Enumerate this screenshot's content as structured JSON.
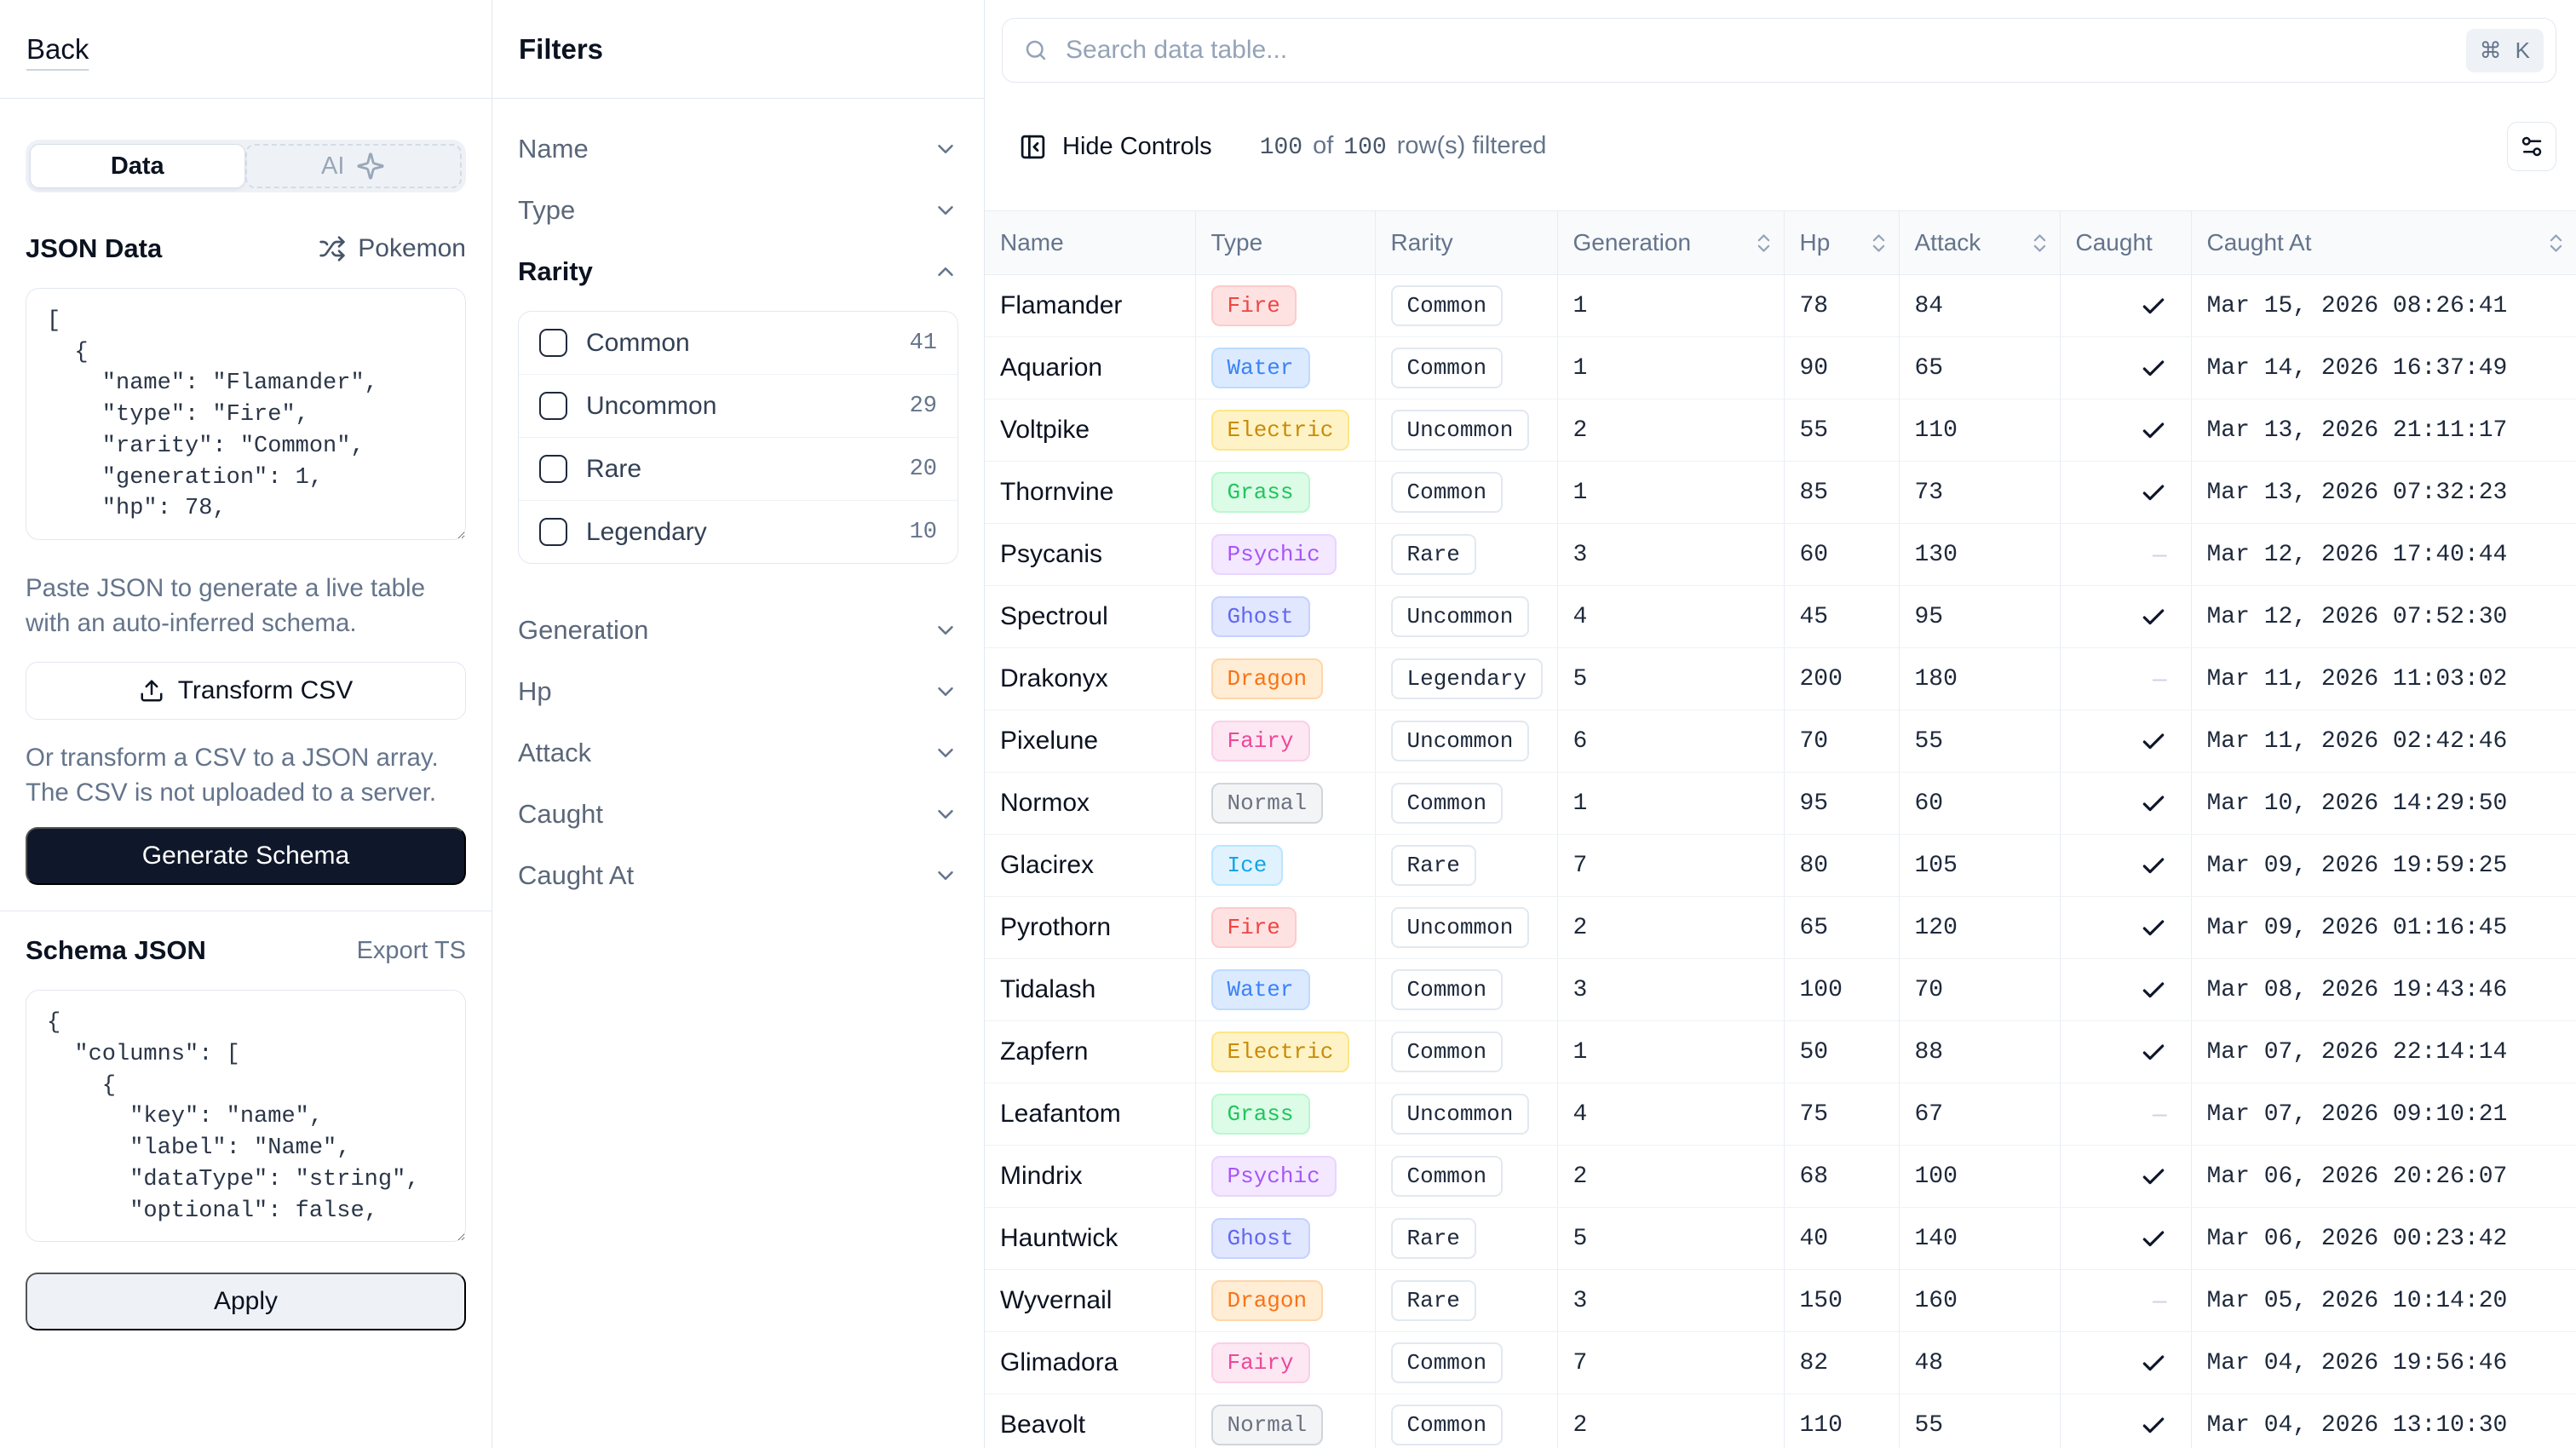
{
  "colors": {
    "accent_dark": "#0f172a",
    "border": "#e2e8f0",
    "header_bg": "#f8fafc",
    "muted": "#64748b"
  },
  "sidebar": {
    "back_label": "Back",
    "tabs": {
      "data": "Data",
      "ai": "AI"
    },
    "json_data_label": "JSON Data",
    "randomize_label": "Pokemon",
    "json_value": "[\n  {\n    \"name\": \"Flamander\",\n    \"type\": \"Fire\",\n    \"rarity\": \"Common\",\n    \"generation\": 1,\n    \"hp\": 78,",
    "json_help": "Paste JSON to generate a live table with an auto-inferred schema.",
    "transform_csv_label": "Transform CSV",
    "csv_help": "Or transform a CSV to a JSON array. The CSV is not uploaded to a server.",
    "generate_schema_label": "Generate Schema",
    "schema_json_label": "Schema JSON",
    "export_ts_label": "Export TS",
    "schema_value": "{\n  \"columns\": [\n    {\n      \"key\": \"name\",\n      \"label\": \"Name\",\n      \"dataType\": \"string\",\n      \"optional\": false,",
    "apply_label": "Apply"
  },
  "filters": {
    "title": "Filters",
    "sections": [
      {
        "label": "Name",
        "expanded": false
      },
      {
        "label": "Type",
        "expanded": false
      },
      {
        "label": "Rarity",
        "expanded": true,
        "options": [
          {
            "label": "Common",
            "count": "41"
          },
          {
            "label": "Uncommon",
            "count": "29"
          },
          {
            "label": "Rare",
            "count": "20"
          },
          {
            "label": "Legendary",
            "count": "10"
          }
        ]
      },
      {
        "label": "Generation",
        "expanded": false
      },
      {
        "label": "Hp",
        "expanded": false
      },
      {
        "label": "Attack",
        "expanded": false
      },
      {
        "label": "Caught",
        "expanded": false
      },
      {
        "label": "Caught At",
        "expanded": false
      }
    ]
  },
  "toolbar": {
    "search_placeholder": "Search data table...",
    "shortcut_cmd": "⌘",
    "shortcut_key": "K",
    "hide_controls_label": "Hide Controls",
    "status": {
      "count": "100",
      "of_label": "of",
      "total": "100",
      "label": "row(s) filtered"
    }
  },
  "type_colors": {
    "Fire": {
      "text": "#ef4444",
      "bg": "#fee2e2",
      "border": "#fecaca"
    },
    "Water": {
      "text": "#3b82f6",
      "bg": "#dbeafe",
      "border": "#bfdbfe"
    },
    "Electric": {
      "text": "#ca8a04",
      "bg": "#fef3c7",
      "border": "#fde68a"
    },
    "Grass": {
      "text": "#22c55e",
      "bg": "#dcfce7",
      "border": "#bbf7d0"
    },
    "Psychic": {
      "text": "#a855f7",
      "bg": "#f3e8ff",
      "border": "#e9d5ff"
    },
    "Ghost": {
      "text": "#6366f1",
      "bg": "#e0e7ff",
      "border": "#c7d2fe"
    },
    "Dragon": {
      "text": "#f97316",
      "bg": "#ffedd5",
      "border": "#fed7aa"
    },
    "Fairy": {
      "text": "#ec4899",
      "bg": "#fce7f3",
      "border": "#fbcfe8"
    },
    "Normal": {
      "text": "#6b7280",
      "bg": "#f3f4f6",
      "border": "#d1d5db"
    },
    "Ice": {
      "text": "#0ea5e9",
      "bg": "#e0f2fe",
      "border": "#bae6fd"
    }
  },
  "table": {
    "columns": [
      {
        "key": "name",
        "label": "Name",
        "sortable": false
      },
      {
        "key": "type",
        "label": "Type",
        "sortable": false
      },
      {
        "key": "rarity",
        "label": "Rarity",
        "sortable": false
      },
      {
        "key": "generation",
        "label": "Generation",
        "sortable": true
      },
      {
        "key": "hp",
        "label": "Hp",
        "sortable": true
      },
      {
        "key": "attack",
        "label": "Attack",
        "sortable": true
      },
      {
        "key": "caught",
        "label": "Caught",
        "sortable": false
      },
      {
        "key": "caught_at",
        "label": "Caught At",
        "sortable": true
      }
    ],
    "rows": [
      {
        "name": "Flamander",
        "type": "Fire",
        "rarity": "Common",
        "generation": "1",
        "hp": "78",
        "attack": "84",
        "caught": true,
        "caught_at": "Mar 15, 2026 08:26:41"
      },
      {
        "name": "Aquarion",
        "type": "Water",
        "rarity": "Common",
        "generation": "1",
        "hp": "90",
        "attack": "65",
        "caught": true,
        "caught_at": "Mar 14, 2026 16:37:49"
      },
      {
        "name": "Voltpike",
        "type": "Electric",
        "rarity": "Uncommon",
        "generation": "2",
        "hp": "55",
        "attack": "110",
        "caught": true,
        "caught_at": "Mar 13, 2026 21:11:17"
      },
      {
        "name": "Thornvine",
        "type": "Grass",
        "rarity": "Common",
        "generation": "1",
        "hp": "85",
        "attack": "73",
        "caught": true,
        "caught_at": "Mar 13, 2026 07:32:23"
      },
      {
        "name": "Psycanis",
        "type": "Psychic",
        "rarity": "Rare",
        "generation": "3",
        "hp": "60",
        "attack": "130",
        "caught": false,
        "caught_at": "Mar 12, 2026 17:40:44"
      },
      {
        "name": "Spectroul",
        "type": "Ghost",
        "rarity": "Uncommon",
        "generation": "4",
        "hp": "45",
        "attack": "95",
        "caught": true,
        "caught_at": "Mar 12, 2026 07:52:30"
      },
      {
        "name": "Drakonyx",
        "type": "Dragon",
        "rarity": "Legendary",
        "generation": "5",
        "hp": "200",
        "attack": "180",
        "caught": false,
        "caught_at": "Mar 11, 2026 11:03:02"
      },
      {
        "name": "Pixelune",
        "type": "Fairy",
        "rarity": "Uncommon",
        "generation": "6",
        "hp": "70",
        "attack": "55",
        "caught": true,
        "caught_at": "Mar 11, 2026 02:42:46"
      },
      {
        "name": "Normox",
        "type": "Normal",
        "rarity": "Common",
        "generation": "1",
        "hp": "95",
        "attack": "60",
        "caught": true,
        "caught_at": "Mar 10, 2026 14:29:50"
      },
      {
        "name": "Glacirex",
        "type": "Ice",
        "rarity": "Rare",
        "generation": "7",
        "hp": "80",
        "attack": "105",
        "caught": true,
        "caught_at": "Mar 09, 2026 19:59:25"
      },
      {
        "name": "Pyrothorn",
        "type": "Fire",
        "rarity": "Uncommon",
        "generation": "2",
        "hp": "65",
        "attack": "120",
        "caught": true,
        "caught_at": "Mar 09, 2026 01:16:45"
      },
      {
        "name": "Tidalash",
        "type": "Water",
        "rarity": "Common",
        "generation": "3",
        "hp": "100",
        "attack": "70",
        "caught": true,
        "caught_at": "Mar 08, 2026 19:43:46"
      },
      {
        "name": "Zapfern",
        "type": "Electric",
        "rarity": "Common",
        "generation": "1",
        "hp": "50",
        "attack": "88",
        "caught": true,
        "caught_at": "Mar 07, 2026 22:14:14"
      },
      {
        "name": "Leafantom",
        "type": "Grass",
        "rarity": "Uncommon",
        "generation": "4",
        "hp": "75",
        "attack": "67",
        "caught": false,
        "caught_at": "Mar 07, 2026 09:10:21"
      },
      {
        "name": "Mindrix",
        "type": "Psychic",
        "rarity": "Common",
        "generation": "2",
        "hp": "68",
        "attack": "100",
        "caught": true,
        "caught_at": "Mar 06, 2026 20:26:07"
      },
      {
        "name": "Hauntwick",
        "type": "Ghost",
        "rarity": "Rare",
        "generation": "5",
        "hp": "40",
        "attack": "140",
        "caught": true,
        "caught_at": "Mar 06, 2026 00:23:42"
      },
      {
        "name": "Wyvernail",
        "type": "Dragon",
        "rarity": "Rare",
        "generation": "3",
        "hp": "150",
        "attack": "160",
        "caught": false,
        "caught_at": "Mar 05, 2026 10:14:20"
      },
      {
        "name": "Glimadora",
        "type": "Fairy",
        "rarity": "Common",
        "generation": "7",
        "hp": "82",
        "attack": "48",
        "caught": true,
        "caught_at": "Mar 04, 2026 19:56:46"
      },
      {
        "name": "Beavolt",
        "type": "Normal",
        "rarity": "Common",
        "generation": "2",
        "hp": "110",
        "attack": "55",
        "caught": true,
        "caught_at": "Mar 04, 2026 13:10:30"
      }
    ]
  }
}
